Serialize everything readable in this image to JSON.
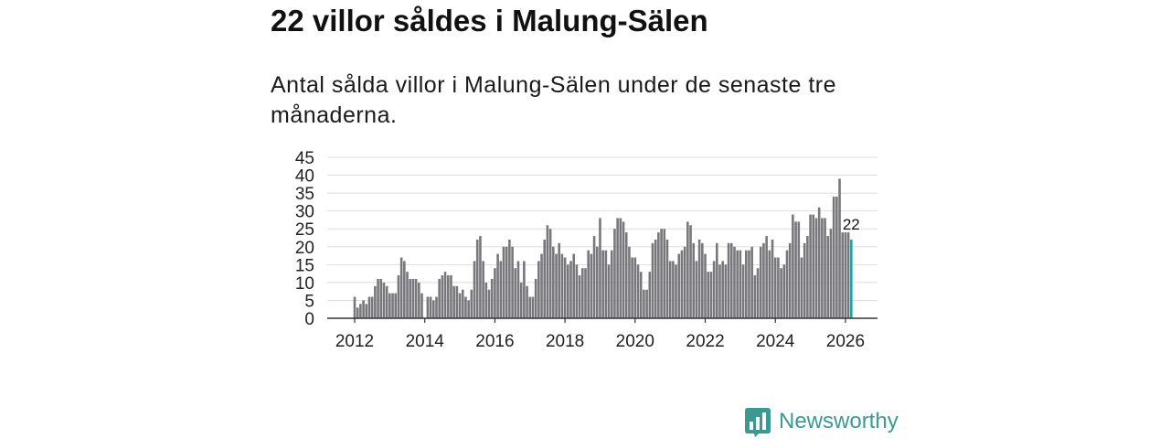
{
  "chart_data": {
    "type": "bar",
    "title": "22 villor såldes i Malung-Sälen",
    "subtitle": "Antal sålda villor i Malung-Sälen under de senaste tre månaderna.",
    "start_year": 2012,
    "start_month": 1,
    "values": [
      6,
      3,
      4,
      5,
      4,
      6,
      6,
      9,
      11,
      11,
      10,
      9,
      7,
      7,
      7,
      12,
      17,
      16,
      13,
      11,
      11,
      11,
      10,
      7,
      0,
      6,
      6,
      5,
      6,
      11,
      12,
      13,
      12,
      12,
      9,
      9,
      7,
      8,
      6,
      5,
      8,
      16,
      22,
      23,
      16,
      10,
      8,
      11,
      14,
      18,
      16,
      20,
      20,
      22,
      20,
      14,
      16,
      10,
      16,
      9,
      6,
      6,
      11,
      16,
      18,
      22,
      26,
      25,
      20,
      18,
      21,
      18,
      17,
      15,
      16,
      18,
      15,
      12,
      14,
      14,
      19,
      18,
      23,
      20,
      28,
      19,
      19,
      15,
      19,
      25,
      28,
      28,
      27,
      24,
      20,
      17,
      17,
      15,
      13,
      8,
      8,
      13,
      21,
      22,
      24,
      25,
      25,
      22,
      16,
      16,
      15,
      18,
      19,
      20,
      27,
      26,
      21,
      16,
      22,
      21,
      18,
      13,
      13,
      16,
      21,
      15,
      16,
      15,
      21,
      21,
      20,
      19,
      19,
      15,
      19,
      19,
      20,
      12,
      14,
      20,
      21,
      23,
      19,
      22,
      17,
      17,
      14,
      15,
      19,
      21,
      29,
      27,
      27,
      17,
      21,
      23,
      29,
      29,
      28,
      31,
      28,
      28,
      23,
      25,
      34,
      34,
      39,
      24,
      24,
      24,
      22
    ],
    "highlight": {
      "last": true,
      "label": "22"
    },
    "ylim": [
      0,
      45
    ],
    "yticks": [
      0,
      5,
      10,
      15,
      20,
      25,
      30,
      35,
      40,
      45
    ],
    "xticks": [
      "2012",
      "2014",
      "2016",
      "2018",
      "2020",
      "2022",
      "2024",
      "2026"
    ],
    "grid": true
  },
  "footer": {
    "brand": "Newsworthy",
    "icon": "newsworthy-logo-icon"
  },
  "colors": {
    "bar": "#77777c",
    "highlight": "#22a39f",
    "brand": "#3a9a93",
    "text": "#111111"
  }
}
